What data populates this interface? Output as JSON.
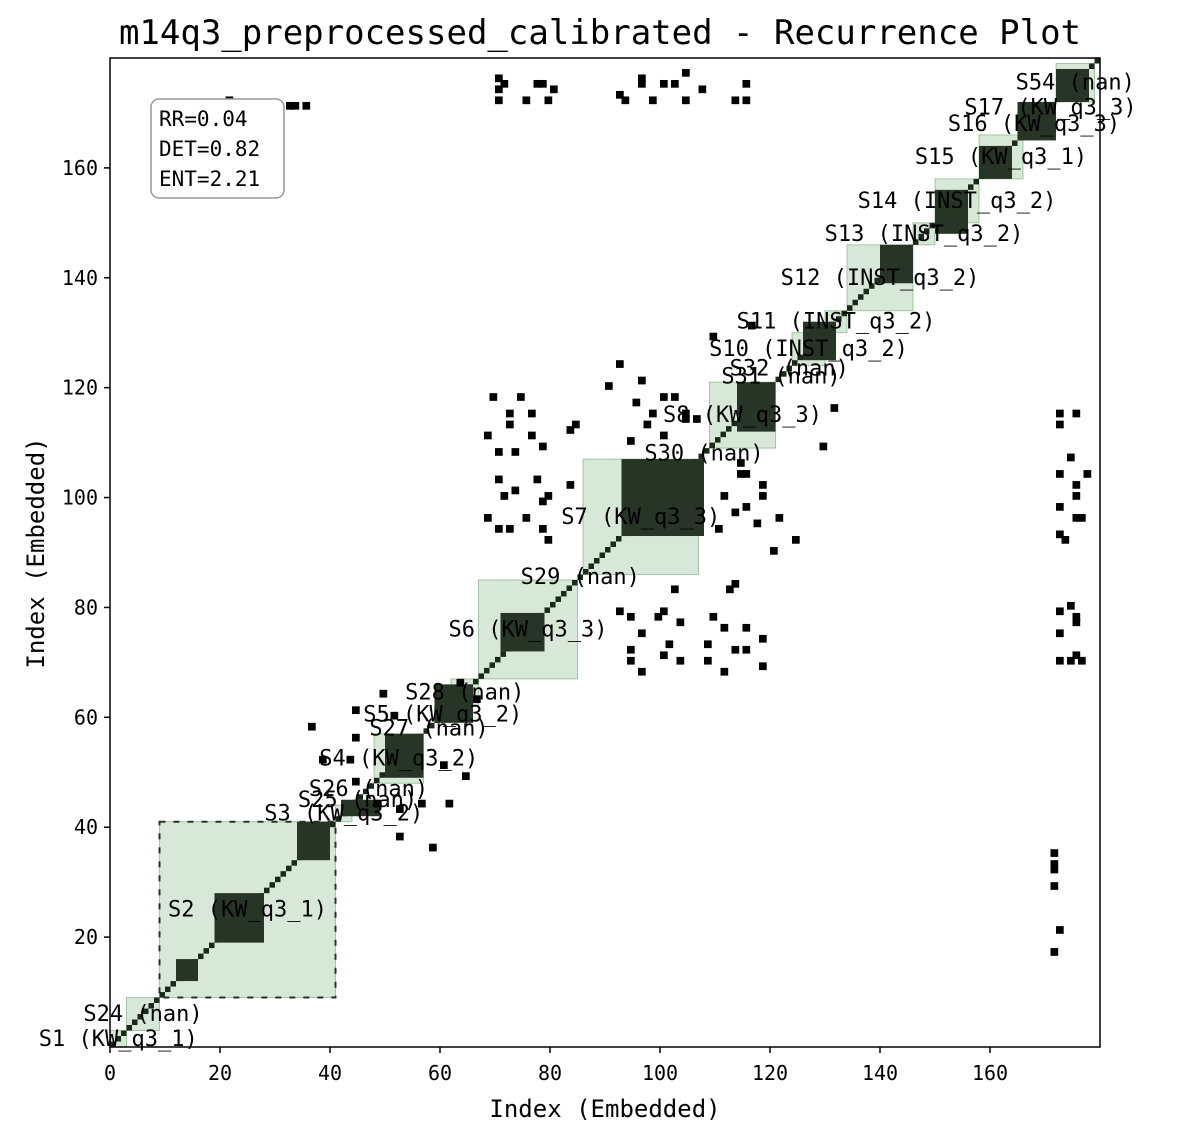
{
  "chart_data": {
    "type": "heatmap",
    "title": "m14q3_preprocessed_calibrated - Recurrence Plot",
    "xlabel": "Index (Embedded)",
    "ylabel": "Index (Embedded)",
    "xlim": [
      0,
      180
    ],
    "ylim": [
      0,
      180
    ],
    "x_ticks": [
      "0",
      "20",
      "40",
      "60",
      "80",
      "100",
      "120",
      "140",
      "160"
    ],
    "y_ticks": [
      "20",
      "40",
      "60",
      "80",
      "100",
      "120",
      "140",
      "160"
    ],
    "stats": [
      "RR=0.04",
      "DET=0.82",
      "ENT=2.21"
    ],
    "colors": {
      "point": "#000000",
      "segment_fill": "#8fbc8f",
      "segment_border": "#5a9a5a"
    },
    "segments": [
      {
        "label": "S2 (KW_q3_1)",
        "start": 9,
        "end": 41
      },
      {
        "label": "S3 (KW_q3_2)",
        "start": 41,
        "end": 44
      },
      {
        "label": "S25 (nan)",
        "start": 44,
        "end": 46
      },
      {
        "label": "S26 (nan)",
        "start": 46,
        "end": 48
      },
      {
        "label": "S4 (KW_q3_2)",
        "start": 48,
        "end": 57
      },
      {
        "label": "S27 (nan)",
        "start": 57,
        "end": 59
      },
      {
        "label": "S5 (KW_q3_2)",
        "start": 59,
        "end": 62
      },
      {
        "label": "S28 (nan)",
        "start": 62,
        "end": 67
      },
      {
        "label": "S6 (KW_q3_3)",
        "start": 67,
        "end": 85
      },
      {
        "label": "S29 (nan)",
        "start": 85,
        "end": 86
      },
      {
        "label": "S7 (KW_q3_3)",
        "start": 86,
        "end": 107
      },
      {
        "label": "S30 (nan)",
        "start": 107,
        "end": 109
      },
      {
        "label": "S8 (KW_q3_3)",
        "start": 109,
        "end": 121
      },
      {
        "label": "S31 (nan)",
        "start": 121,
        "end": 123
      },
      {
        "label": "S32 (nan)",
        "start": 123,
        "end": 124
      },
      {
        "label": "S10 (INST_q3_2)",
        "start": 124,
        "end": 130
      },
      {
        "label": "S11 (INST_q3_2)",
        "start": 130,
        "end": 134
      },
      {
        "label": "S12 (INST_q3_2)",
        "start": 134,
        "end": 146
      },
      {
        "label": "S13 (INST_q3_2)",
        "start": 146,
        "end": 150
      },
      {
        "label": "S14 (INST_q3_2)",
        "start": 150,
        "end": 158
      },
      {
        "label": "S15 (KW_q3_1)",
        "start": 158,
        "end": 166
      },
      {
        "label": "S16 (KW_q3_3)",
        "start": 166,
        "end": 170
      },
      {
        "label": "S17 (KW_q3_3)",
        "start": 170,
        "end": 172
      },
      {
        "label": "S24 (nan)",
        "start": 3,
        "end": 9
      },
      {
        "label": "S1 (KW_q3_1)",
        "start": 0,
        "end": 3
      },
      {
        "label": "S54 (nan)",
        "start": 172,
        "end": 179
      }
    ],
    "recurrence_blocks": [
      {
        "x": [
          9,
          41
        ],
        "y": [
          9,
          41
        ],
        "level": 0.4
      },
      {
        "x": [
          19,
          28
        ],
        "y": [
          19,
          28
        ],
        "level": 1
      },
      {
        "x": [
          12,
          16
        ],
        "y": [
          12,
          16
        ],
        "level": 1
      },
      {
        "x": [
          34,
          40
        ],
        "y": [
          34,
          41
        ],
        "level": 1
      },
      {
        "x": [
          42,
          49
        ],
        "y": [
          42,
          45
        ],
        "level": 1
      },
      {
        "x": [
          50,
          57
        ],
        "y": [
          49,
          57
        ],
        "level": 1
      },
      {
        "x": [
          59,
          66
        ],
        "y": [
          59,
          66
        ],
        "level": 1
      },
      {
        "x": [
          71,
          79
        ],
        "y": [
          72,
          79
        ],
        "level": 1
      },
      {
        "x": [
          93,
          108
        ],
        "y": [
          93,
          107
        ],
        "level": 1
      },
      {
        "x": [
          114,
          121
        ],
        "y": [
          112,
          121
        ],
        "level": 1
      },
      {
        "x": [
          126,
          132
        ],
        "y": [
          125,
          132
        ],
        "level": 1
      },
      {
        "x": [
          140,
          146
        ],
        "y": [
          139,
          146
        ],
        "level": 1
      },
      {
        "x": [
          150,
          156
        ],
        "y": [
          148,
          156
        ],
        "level": 1
      },
      {
        "x": [
          158,
          164
        ],
        "y": [
          158,
          164
        ],
        "level": 1
      },
      {
        "x": [
          165,
          172
        ],
        "y": [
          165,
          172
        ],
        "level": 1
      },
      {
        "x": [
          172,
          178
        ],
        "y": [
          172,
          178
        ],
        "level": 1
      }
    ],
    "off_diagonal_points": [
      [
        21,
        172
      ],
      [
        32,
        171
      ],
      [
        35,
        171
      ],
      [
        70,
        176
      ],
      [
        70,
        174
      ],
      [
        77,
        175
      ],
      [
        80,
        174
      ],
      [
        92,
        173
      ],
      [
        96,
        176
      ],
      [
        100,
        175
      ],
      [
        104,
        177
      ],
      [
        107,
        174
      ],
      [
        115,
        175
      ],
      [
        115,
        172
      ],
      [
        68,
        111
      ],
      [
        72,
        113
      ],
      [
        76,
        111
      ],
      [
        78,
        109
      ],
      [
        70,
        103
      ],
      [
        73,
        101
      ],
      [
        78,
        99
      ],
      [
        68,
        96
      ],
      [
        72,
        94
      ],
      [
        79,
        92
      ],
      [
        83,
        112
      ],
      [
        83,
        102
      ],
      [
        94,
        110
      ],
      [
        97,
        113
      ],
      [
        100,
        111
      ],
      [
        104,
        114
      ],
      [
        115,
        104
      ],
      [
        118,
        100
      ],
      [
        121,
        96
      ],
      [
        124,
        92
      ],
      [
        129,
        109
      ],
      [
        131,
        116
      ],
      [
        94,
        78
      ],
      [
        96,
        75
      ],
      [
        100,
        79
      ],
      [
        103,
        77
      ],
      [
        108,
        73
      ],
      [
        115,
        76
      ],
      [
        118,
        74
      ],
      [
        94,
        70
      ],
      [
        100,
        71
      ],
      [
        108,
        70
      ],
      [
        115,
        72
      ],
      [
        118,
        69
      ],
      [
        113,
        84
      ],
      [
        172,
        113
      ],
      [
        172,
        104
      ],
      [
        175,
        102
      ],
      [
        172,
        98
      ],
      [
        175,
        96
      ],
      [
        172,
        93
      ],
      [
        172,
        79
      ],
      [
        175,
        78
      ],
      [
        172,
        75
      ],
      [
        175,
        71
      ],
      [
        172,
        70
      ],
      [
        171,
        33
      ],
      [
        171,
        29
      ],
      [
        171,
        17
      ],
      [
        36,
        58
      ],
      [
        38,
        52
      ],
      [
        44,
        61
      ],
      [
        48,
        44
      ],
      [
        52,
        43
      ],
      [
        56,
        44
      ],
      [
        60,
        51
      ],
      [
        64,
        49
      ],
      [
        66,
        63
      ],
      [
        90,
        120
      ],
      [
        95,
        117
      ],
      [
        98,
        115
      ],
      [
        102,
        118
      ],
      [
        106,
        114
      ]
    ]
  }
}
